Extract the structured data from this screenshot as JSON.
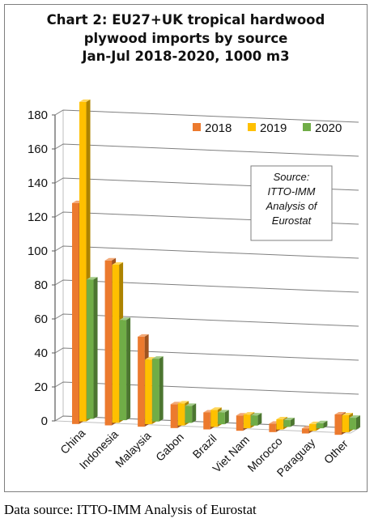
{
  "chart_data": {
    "type": "bar",
    "title_lines": [
      "Chart 2: EU27+UK tropical  hardwood",
      "plywood imports by source",
      "Jan-Jul 2018-2020, 1000 m3"
    ],
    "categories": [
      "China",
      "Indonesia",
      "Malaysia",
      "Gabon",
      "Brazil",
      "Viet Nam",
      "Morocco",
      "Paraguay",
      "Other"
    ],
    "series": [
      {
        "name": "2018",
        "color": "#ec7a2e",
        "values": [
          130,
          97,
          53,
          14,
          10,
          9,
          5,
          3,
          12
        ]
      },
      {
        "name": "2019",
        "color": "#ffc000",
        "values": [
          188,
          93,
          38,
          13,
          10,
          8,
          6,
          4,
          10
        ]
      },
      {
        "name": "2020",
        "color": "#70ad47",
        "values": [
          82,
          59,
          37,
          10,
          7,
          6,
          4,
          3,
          7
        ]
      }
    ],
    "ylim": [
      0,
      180
    ],
    "yticks": [
      0,
      20,
      40,
      60,
      80,
      100,
      120,
      140,
      160,
      180
    ],
    "grid": true,
    "legend_position": "top-right",
    "annotation_lines": [
      "Source:",
      "ITTO-IMM",
      "Analysis of",
      "Eurostat"
    ]
  },
  "footer": {
    "source": "Data source: ITTO-IMM Analysis of Eurostat"
  }
}
